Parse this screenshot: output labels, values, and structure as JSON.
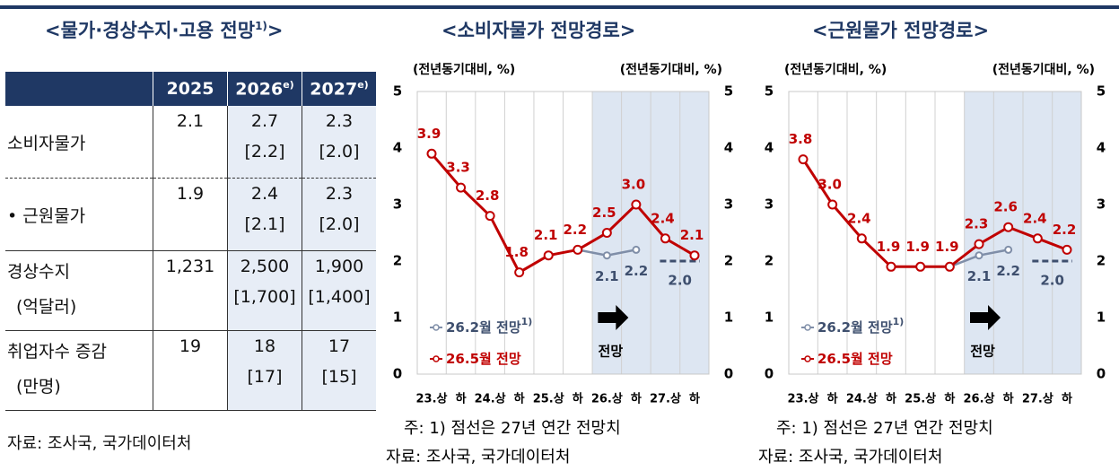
{
  "left": {
    "title": {
      "before": "<물가·경상수지·고용 전망",
      "note": "1)",
      "after": ">"
    },
    "table": {
      "header": [
        {
          "year": "2025"
        },
        {
          "year": "2026",
          "note": "e)"
        },
        {
          "year": "2027",
          "note": "e)"
        }
      ],
      "rows": [
        {
          "label": "소비자물가",
          "cells": [
            {
              "main": "2.1"
            },
            {
              "main": "2.7",
              "prev": "[2.2]"
            },
            {
              "main": "2.3",
              "prev": "[2.0]"
            }
          ]
        },
        {
          "label": "• 근원물가",
          "cells": [
            {
              "main": "1.9"
            },
            {
              "main": "2.4",
              "prev": "[2.1]"
            },
            {
              "main": "2.3",
              "prev": "[2.0]"
            }
          ]
        },
        {
          "label": "경상수지",
          "sublabel": "(억달러)",
          "cells": [
            {
              "main": "1,231"
            },
            {
              "main": "2,500",
              "prev": "[1,700]"
            },
            {
              "main": "1,900",
              "prev": "[1,400]"
            }
          ]
        },
        {
          "label": "취업자수 증감",
          "sublabel": "(만명)",
          "cells": [
            {
              "main": "19"
            },
            {
              "main": "18",
              "prev": "[17]"
            },
            {
              "main": "17",
              "prev": "[15]"
            }
          ]
        }
      ]
    },
    "source": "자료: 조사국, 국가데이터처"
  },
  "chart_data": [
    {
      "type": "line",
      "title": "<소비자물가 전망경로>",
      "y_label": "(전년동기대비, %)",
      "y2_label": "(전년동기대비, %)",
      "categories": [
        "23.상",
        "하",
        "24.상",
        "하",
        "25.상",
        "하",
        "26.상",
        "하",
        "27.상",
        "하"
      ],
      "ylim": [
        0,
        5
      ],
      "yticks": [
        0,
        1,
        2,
        3,
        4,
        5
      ],
      "y2lim": [
        0,
        5
      ],
      "y2ticks": [
        0,
        1,
        2,
        3,
        4,
        5
      ],
      "grid": false,
      "shade_from_category": "26.상",
      "annotation": "전망",
      "series": [
        {
          "name": "26.2월 전망",
          "name_note": "1)",
          "color": "#7f8ea8",
          "values": [
            null,
            null,
            null,
            null,
            null,
            2.2,
            2.1,
            2.2,
            null,
            null
          ],
          "value_labels": [
            null,
            null,
            null,
            null,
            null,
            null,
            "2.1",
            "2.2",
            null,
            null
          ],
          "annual_2027": 2.0,
          "annual_2027_label": "2.0"
        },
        {
          "name": "26.5월 전망",
          "color": "#c00000",
          "values": [
            3.9,
            3.3,
            2.8,
            1.8,
            2.1,
            2.2,
            2.5,
            3.0,
            2.4,
            2.1
          ],
          "value_labels": [
            "3.9",
            "3.3",
            "2.8",
            "1.8",
            "2.1",
            "2.2",
            "2.5",
            "3.0",
            "2.4",
            "2.1"
          ]
        }
      ],
      "note": "주: 1) 점선은 27년 연간 전망치",
      "source": "자료: 조사국, 국가데이터처"
    },
    {
      "type": "line",
      "title": "<근원물가 전망경로>",
      "y_label": "(전년동기대비, %)",
      "y2_label": "(전년동기대비, %)",
      "categories": [
        "23.상",
        "하",
        "24.상",
        "하",
        "25.상",
        "하",
        "26.상",
        "하",
        "27.상",
        "하"
      ],
      "ylim": [
        0,
        5
      ],
      "yticks": [
        0,
        1,
        2,
        3,
        4,
        5
      ],
      "y2lim": [
        0,
        5
      ],
      "y2ticks": [
        0,
        1,
        2,
        3,
        4,
        5
      ],
      "grid": false,
      "shade_from_category": "26.상",
      "annotation": "전망",
      "series": [
        {
          "name": "26.2월 전망",
          "name_note": "1)",
          "color": "#7f8ea8",
          "values": [
            null,
            null,
            null,
            null,
            null,
            1.9,
            2.1,
            2.2,
            null,
            null
          ],
          "value_labels": [
            null,
            null,
            null,
            null,
            null,
            null,
            "2.1",
            "2.2",
            null,
            null
          ],
          "annual_2027": 2.0,
          "annual_2027_label": "2.0"
        },
        {
          "name": "26.5월 전망",
          "color": "#c00000",
          "values": [
            3.8,
            3.0,
            2.4,
            1.9,
            1.9,
            1.9,
            2.3,
            2.6,
            2.4,
            2.2
          ],
          "value_labels": [
            "3.8",
            "3.0",
            "2.4",
            "1.9",
            "1.9",
            "1.9",
            "2.3",
            "2.6",
            "2.4",
            "2.2"
          ]
        }
      ],
      "note": "주: 1) 점선은 27년 연간 전망치",
      "source": "자료: 조사국, 국가데이터처"
    }
  ]
}
